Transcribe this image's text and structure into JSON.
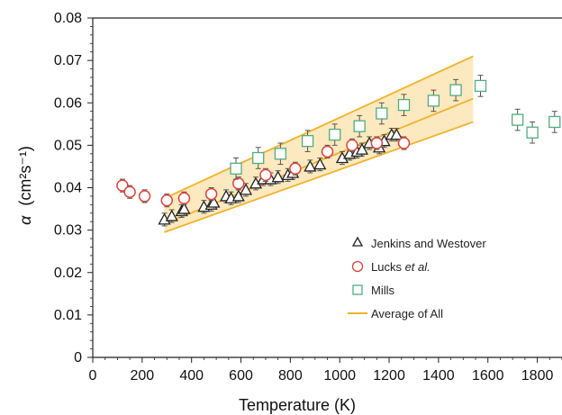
{
  "chart_data": {
    "type": "scatter",
    "title": "",
    "xlabel": "Temperature (K)",
    "ylabel_symbol": "α",
    "ylabel_units_text": "(cm²s⁻¹)",
    "xlim": [
      0,
      1900
    ],
    "ylim": [
      0,
      0.08
    ],
    "xticks": [
      "0",
      "200",
      "400",
      "600",
      "800",
      "1000",
      "1200",
      "1400",
      "1600",
      "1800"
    ],
    "yticks": [
      "0",
      "0.01",
      "0.02",
      "0.03",
      "0.04",
      "0.05",
      "0.06",
      "0.07",
      "0.08"
    ],
    "grid": false,
    "legend_position": "lower-right",
    "series": [
      {
        "name": "Jenkins and Westover",
        "marker": "triangle",
        "color": "#222222",
        "x": [
          290,
          320,
          360,
          370,
          450,
          480,
          490,
          540,
          560,
          590,
          620,
          660,
          690,
          720,
          750,
          790,
          810,
          880,
          920,
          1010,
          1040,
          1070,
          1090,
          1120,
          1160,
          1180,
          1210,
          1230
        ],
        "y": [
          0.0325,
          0.0333,
          0.0345,
          0.035,
          0.0355,
          0.036,
          0.0365,
          0.038,
          0.0375,
          0.038,
          0.0395,
          0.041,
          0.042,
          0.042,
          0.0425,
          0.043,
          0.0435,
          0.045,
          0.0455,
          0.047,
          0.048,
          0.0485,
          0.049,
          0.0505,
          0.0495,
          0.051,
          0.0525,
          0.0525
        ],
        "yerr": 0.0015
      },
      {
        "name": "Lucks et al.",
        "name_prefix": "Lucks ",
        "name_italic": "et al.",
        "marker": "circle",
        "color": "#e0443c",
        "x": [
          120,
          150,
          210,
          300,
          370,
          480,
          590,
          700,
          820,
          950,
          1050,
          1150,
          1260
        ],
        "y": [
          0.0405,
          0.039,
          0.038,
          0.037,
          0.0375,
          0.0385,
          0.041,
          0.043,
          0.0445,
          0.0485,
          0.05,
          0.0505,
          0.0505
        ],
        "yerr": 0.0015
      },
      {
        "name": "Mills",
        "marker": "square",
        "color": "#4fae7f",
        "x": [
          580,
          670,
          760,
          870,
          980,
          1080,
          1170,
          1260,
          1380,
          1470,
          1570,
          1720,
          1780,
          1870
        ],
        "y": [
          0.0445,
          0.047,
          0.048,
          0.051,
          0.0525,
          0.0545,
          0.0575,
          0.0595,
          0.0605,
          0.063,
          0.064,
          0.056,
          0.053,
          0.0555
        ],
        "yerr": 0.0025
      }
    ],
    "average": {
      "name": "Average of All",
      "color": "#f2b22a",
      "band_fill": "#fde9bf",
      "x": [
        290,
        1540
      ],
      "y": [
        0.0315,
        0.061
      ],
      "upper": [
        0.0375,
        0.071
      ],
      "lower": [
        0.0295,
        0.0555
      ]
    }
  }
}
